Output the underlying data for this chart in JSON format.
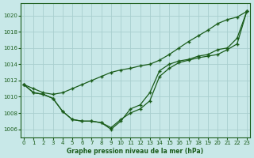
{
  "title": "Graphe pression niveau de la mer (hPa)",
  "background_color": "#c8e8e8",
  "grid_color": "#a8cece",
  "line_color": "#1a5c1a",
  "xlim": [
    -0.3,
    23.3
  ],
  "ylim": [
    1005.0,
    1021.5
  ],
  "yticks": [
    1006,
    1008,
    1010,
    1012,
    1014,
    1016,
    1018,
    1020
  ],
  "xticks": [
    0,
    1,
    2,
    3,
    4,
    5,
    6,
    7,
    8,
    9,
    10,
    11,
    12,
    13,
    14,
    15,
    16,
    17,
    18,
    19,
    20,
    21,
    22,
    23
  ],
  "line_top": [
    1011.5,
    1011.0,
    1010.5,
    1010.3,
    1010.5,
    1011.0,
    1011.5,
    1012.0,
    1012.5,
    1013.0,
    1013.3,
    1013.5,
    1013.8,
    1014.0,
    1014.5,
    1015.2,
    1016.0,
    1016.8,
    1017.5,
    1018.2,
    1019.0,
    1019.5,
    1019.8,
    1020.5
  ],
  "line_mid": [
    1011.5,
    1010.5,
    1010.3,
    1009.8,
    1008.2,
    1007.2,
    1007.0,
    1007.0,
    1006.8,
    1006.2,
    1007.2,
    1008.0,
    1008.5,
    1009.5,
    1012.5,
    1013.5,
    1014.2,
    1014.5,
    1014.8,
    1015.0,
    1015.2,
    1015.8,
    1016.5,
    1020.5
  ],
  "line_bot": [
    1011.5,
    1010.5,
    1010.3,
    1009.8,
    1008.2,
    1007.2,
    1007.0,
    1007.0,
    1006.8,
    1006.0,
    1007.0,
    1008.5,
    1009.0,
    1010.5,
    1013.2,
    1014.0,
    1014.4,
    1014.6,
    1015.0,
    1015.2,
    1015.8,
    1016.0,
    1017.2,
    1020.5
  ]
}
